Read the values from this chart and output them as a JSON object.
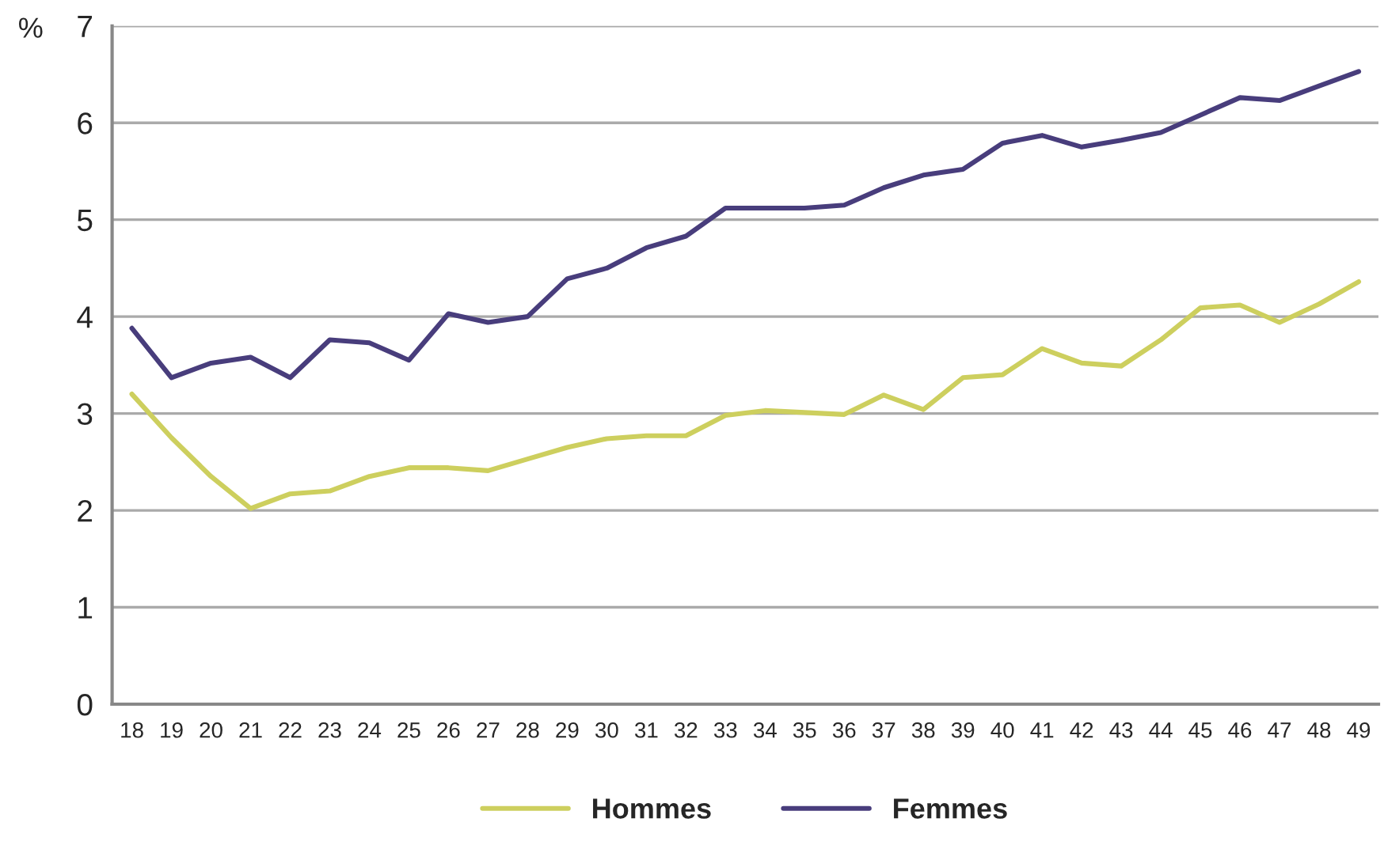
{
  "chart_data": {
    "type": "line",
    "ylabel": "%",
    "categories": [
      "18",
      "19",
      "20",
      "21",
      "22",
      "23",
      "24",
      "25",
      "26",
      "27",
      "28",
      "29",
      "30",
      "31",
      "32",
      "33",
      "34",
      "35",
      "36",
      "37",
      "38",
      "39",
      "40",
      "41",
      "42",
      "43",
      "44",
      "45",
      "46",
      "47",
      "48",
      "49"
    ],
    "series": [
      {
        "name": "Hommes",
        "color": "#cdcf5e",
        "values": [
          3.2,
          2.75,
          2.35,
          2.02,
          2.17,
          2.2,
          2.35,
          2.44,
          2.44,
          2.41,
          2.53,
          2.65,
          2.74,
          2.77,
          2.77,
          2.98,
          3.03,
          3.01,
          2.99,
          3.19,
          3.04,
          3.37,
          3.4,
          3.67,
          3.52,
          3.49,
          3.76,
          4.09,
          4.12,
          3.94,
          4.13,
          4.36
        ]
      },
      {
        "name": "Femmes",
        "color": "#483d7c",
        "values": [
          3.88,
          3.37,
          3.52,
          3.58,
          3.37,
          3.76,
          3.73,
          3.55,
          4.03,
          3.94,
          4.0,
          4.39,
          4.5,
          4.71,
          4.83,
          5.12,
          5.12,
          5.12,
          5.15,
          5.33,
          5.46,
          5.52,
          5.79,
          5.87,
          5.75,
          5.82,
          5.9,
          6.08,
          6.26,
          6.23,
          6.38,
          6.53
        ]
      }
    ],
    "ylim": [
      0,
      7
    ],
    "yticks": [
      0,
      1,
      2,
      3,
      4,
      5,
      6,
      7
    ],
    "grid": "y",
    "legend": "bottom",
    "line_style": "solid",
    "marker": "none"
  }
}
